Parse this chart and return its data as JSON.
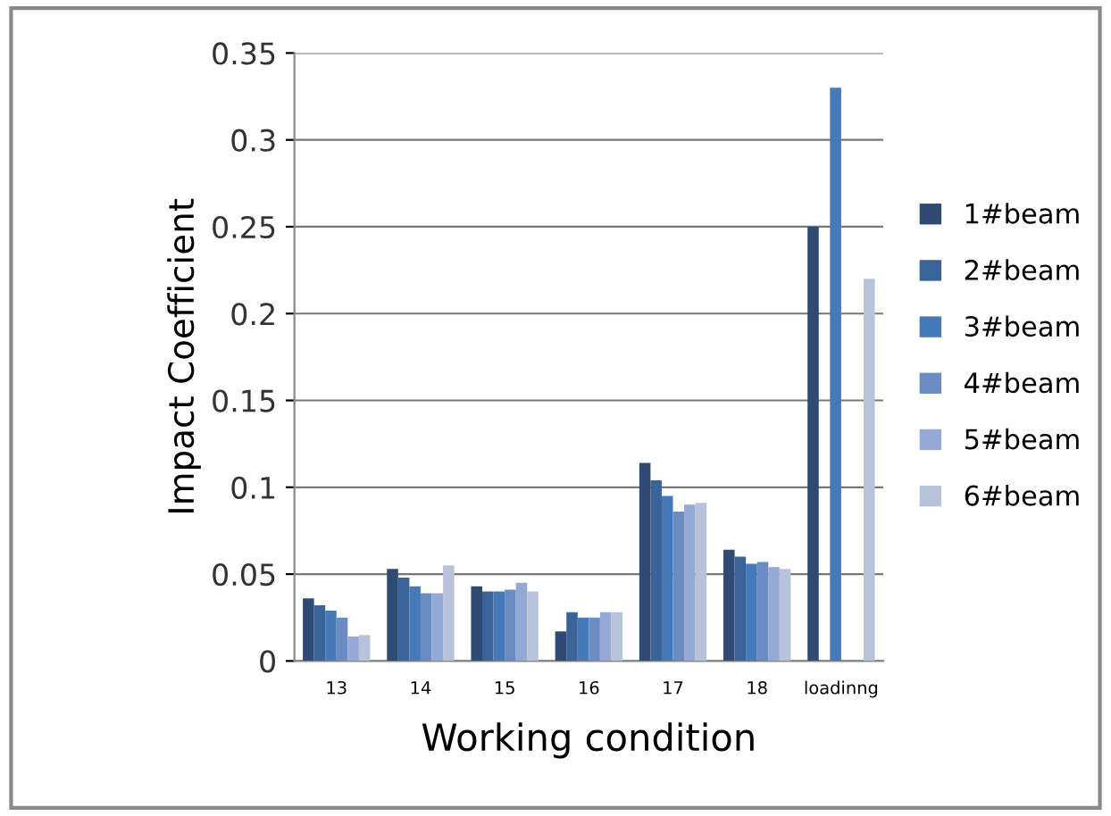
{
  "chart_data": {
    "type": "bar",
    "xlabel": "Working condition",
    "ylabel": "Impact Coefficient",
    "categories": [
      "13",
      "14",
      "15",
      "16",
      "17",
      "18",
      "loadinng"
    ],
    "series": [
      {
        "name": "1#beam",
        "color": "#2f4a73",
        "values": [
          0.036,
          0.053,
          0.043,
          0.017,
          0.114,
          0.064,
          0.25
        ]
      },
      {
        "name": "2#beam",
        "color": "#3a6399",
        "values": [
          0.032,
          0.048,
          0.04,
          0.028,
          0.104,
          0.06,
          null
        ]
      },
      {
        "name": "3#beam",
        "color": "#4679b8",
        "values": [
          0.029,
          0.043,
          0.04,
          0.025,
          0.095,
          0.056,
          0.33
        ]
      },
      {
        "name": "4#beam",
        "color": "#6b8cc2",
        "values": [
          0.025,
          0.039,
          0.041,
          0.025,
          0.086,
          0.057,
          null
        ]
      },
      {
        "name": "5#beam",
        "color": "#95a9d6",
        "values": [
          0.014,
          0.039,
          0.045,
          0.028,
          0.09,
          0.054,
          null
        ]
      },
      {
        "name": "6#beam",
        "color": "#b8c2da",
        "values": [
          0.015,
          0.055,
          0.04,
          0.028,
          0.091,
          0.053,
          0.22
        ]
      }
    ],
    "ylim": [
      0,
      0.35
    ],
    "yticks": [
      0,
      0.05,
      0.1,
      0.15,
      0.2,
      0.25,
      0.3,
      0.35
    ],
    "grid": "y",
    "legend": "right"
  }
}
